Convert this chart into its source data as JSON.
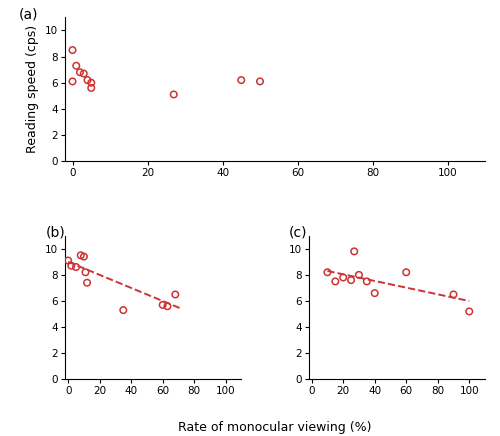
{
  "panel_a": {
    "x": [
      0,
      0,
      1,
      2,
      3,
      4,
      5,
      5,
      27,
      45,
      50
    ],
    "y": [
      8.5,
      6.1,
      7.3,
      6.8,
      6.7,
      6.2,
      6.0,
      5.6,
      5.1,
      6.2,
      6.1
    ],
    "label": "(a)",
    "trendline": false
  },
  "panel_b": {
    "x": [
      0,
      2,
      5,
      8,
      10,
      11,
      12,
      35,
      60,
      63,
      68
    ],
    "y": [
      9.1,
      8.7,
      8.6,
      9.5,
      9.4,
      8.2,
      7.4,
      5.3,
      5.7,
      5.6,
      6.5
    ],
    "label": "(b)",
    "trendline": true,
    "trend_x": [
      0,
      72
    ],
    "trend_y": [
      9.0,
      5.4
    ]
  },
  "panel_c": {
    "x": [
      10,
      15,
      20,
      25,
      27,
      30,
      35,
      40,
      60,
      90,
      100
    ],
    "y": [
      8.2,
      7.5,
      7.8,
      7.6,
      9.8,
      8.0,
      7.5,
      6.6,
      8.2,
      6.5,
      5.2
    ],
    "label": "(c)",
    "trendline": true,
    "trend_x": [
      10,
      100
    ],
    "trend_y": [
      8.3,
      6.0
    ]
  },
  "scatter_color": "#cc3333",
  "marker_size": 22,
  "marker_facecolor": "none",
  "marker_linewidth": 1.1,
  "trendline_color": "#cc3333",
  "trendline_linewidth": 1.4,
  "trendline_linestyle": "--",
  "xlabel": "Rate of monocular viewing (%)",
  "ylabel": "Reading speed (cps)",
  "xlim_ab": [
    -2,
    110
  ],
  "xlim_c": [
    -2,
    110
  ],
  "ylim": [
    0,
    11
  ],
  "xticks": [
    0,
    20,
    40,
    60,
    80,
    100
  ],
  "yticks": [
    0,
    2,
    4,
    6,
    8,
    10
  ],
  "tick_fontsize": 7.5,
  "label_fontsize": 9,
  "panel_label_fontsize": 10
}
